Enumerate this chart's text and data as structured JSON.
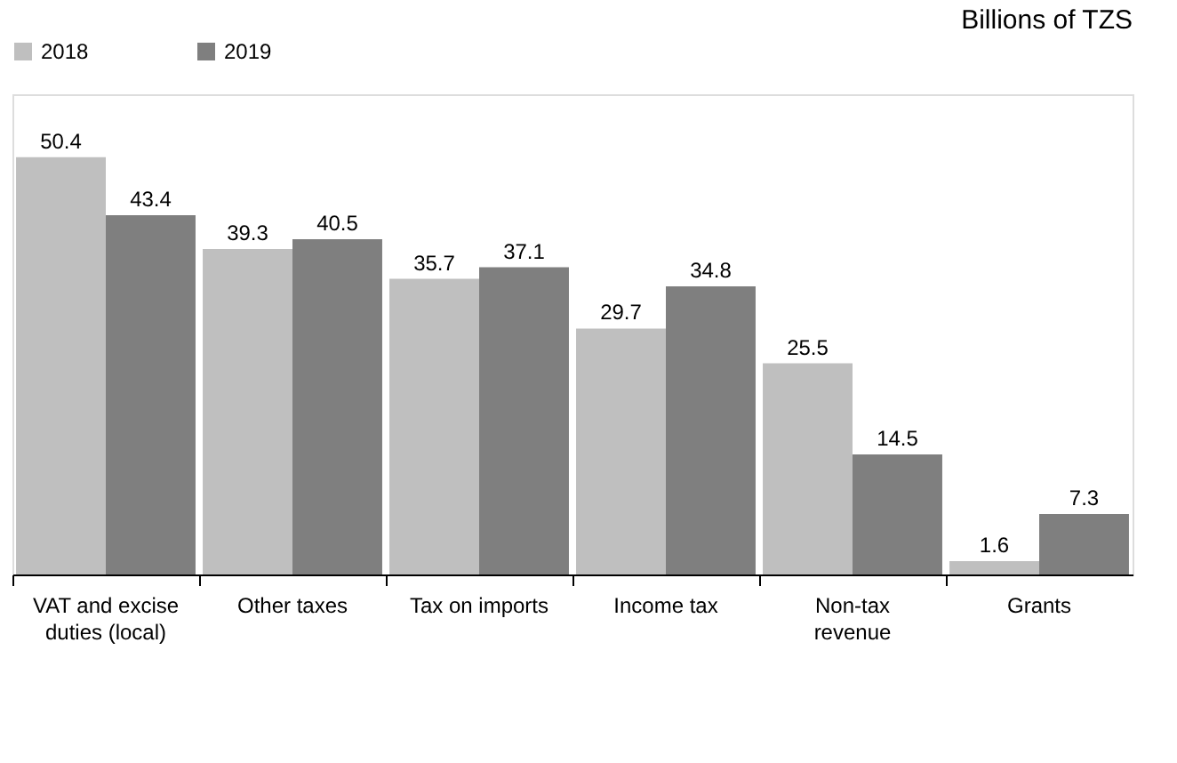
{
  "chart_data": {
    "type": "bar",
    "subtitle": "Billions of TZS",
    "categories": [
      "VAT and excise duties (local)",
      "Other taxes",
      "Tax on imports",
      "Income tax",
      "Non-tax revenue",
      "Grants"
    ],
    "series": [
      {
        "name": "2018",
        "color": "#bfbfbf",
        "values": [
          50.4,
          39.3,
          35.7,
          29.7,
          25.5,
          1.6
        ]
      },
      {
        "name": "2019",
        "color": "#7f7f7f",
        "values": [
          43.4,
          40.5,
          37.1,
          34.8,
          14.5,
          7.3
        ]
      }
    ],
    "ylim": [
      0,
      58
    ],
    "data_labels": true,
    "legend": "top",
    "grid": false,
    "tick_labels": "x"
  }
}
